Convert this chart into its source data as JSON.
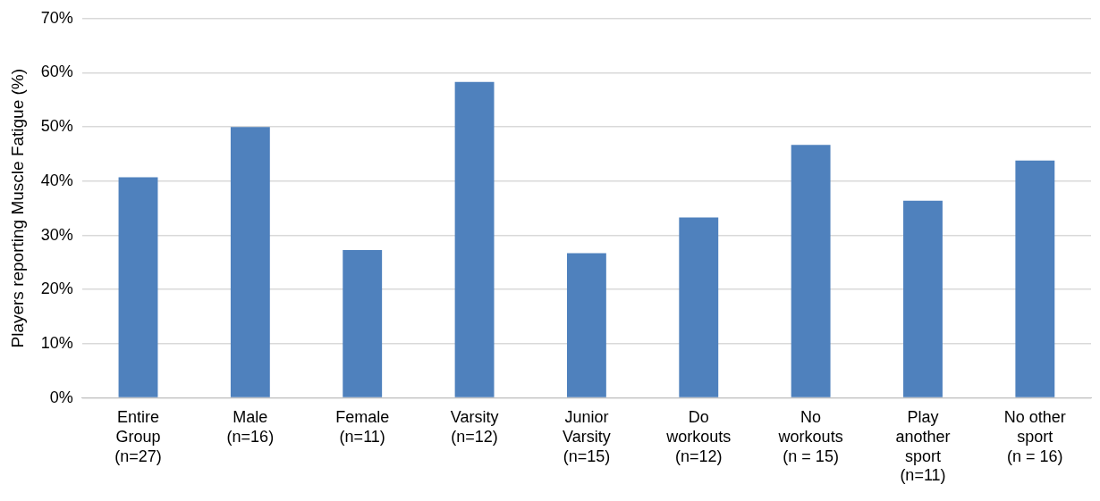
{
  "chart_data": {
    "type": "bar",
    "ylabel": "Players reporting Muscle Fatigue (%)",
    "categories": [
      "Entire\nGroup\n(n=27)",
      "Male\n(n=16)",
      "Female\n(n=11)",
      "Varsity\n(n=12)",
      "Junior\nVarsity\n(n=15)",
      "Do\nworkouts\n(n=12)",
      "No\nworkouts\n(n = 15)",
      "Play\nanother\nsport\n(n=11)",
      "No other\nsport\n(n = 16)"
    ],
    "values": [
      40.7,
      50,
      27.3,
      58.3,
      26.7,
      33.3,
      46.7,
      36.4,
      43.8
    ],
    "color": "#4f81bd",
    "ylim": [
      0,
      70
    ],
    "yticks": [
      {
        "value": 0,
        "label": "0%"
      },
      {
        "value": 10,
        "label": "10%"
      },
      {
        "value": 20,
        "label": "20%"
      },
      {
        "value": 30,
        "label": "30%"
      },
      {
        "value": 40,
        "label": "40%"
      },
      {
        "value": 50,
        "label": "50%"
      },
      {
        "value": 60,
        "label": "60%"
      },
      {
        "value": 70,
        "label": "70%"
      }
    ],
    "grid": "y"
  }
}
